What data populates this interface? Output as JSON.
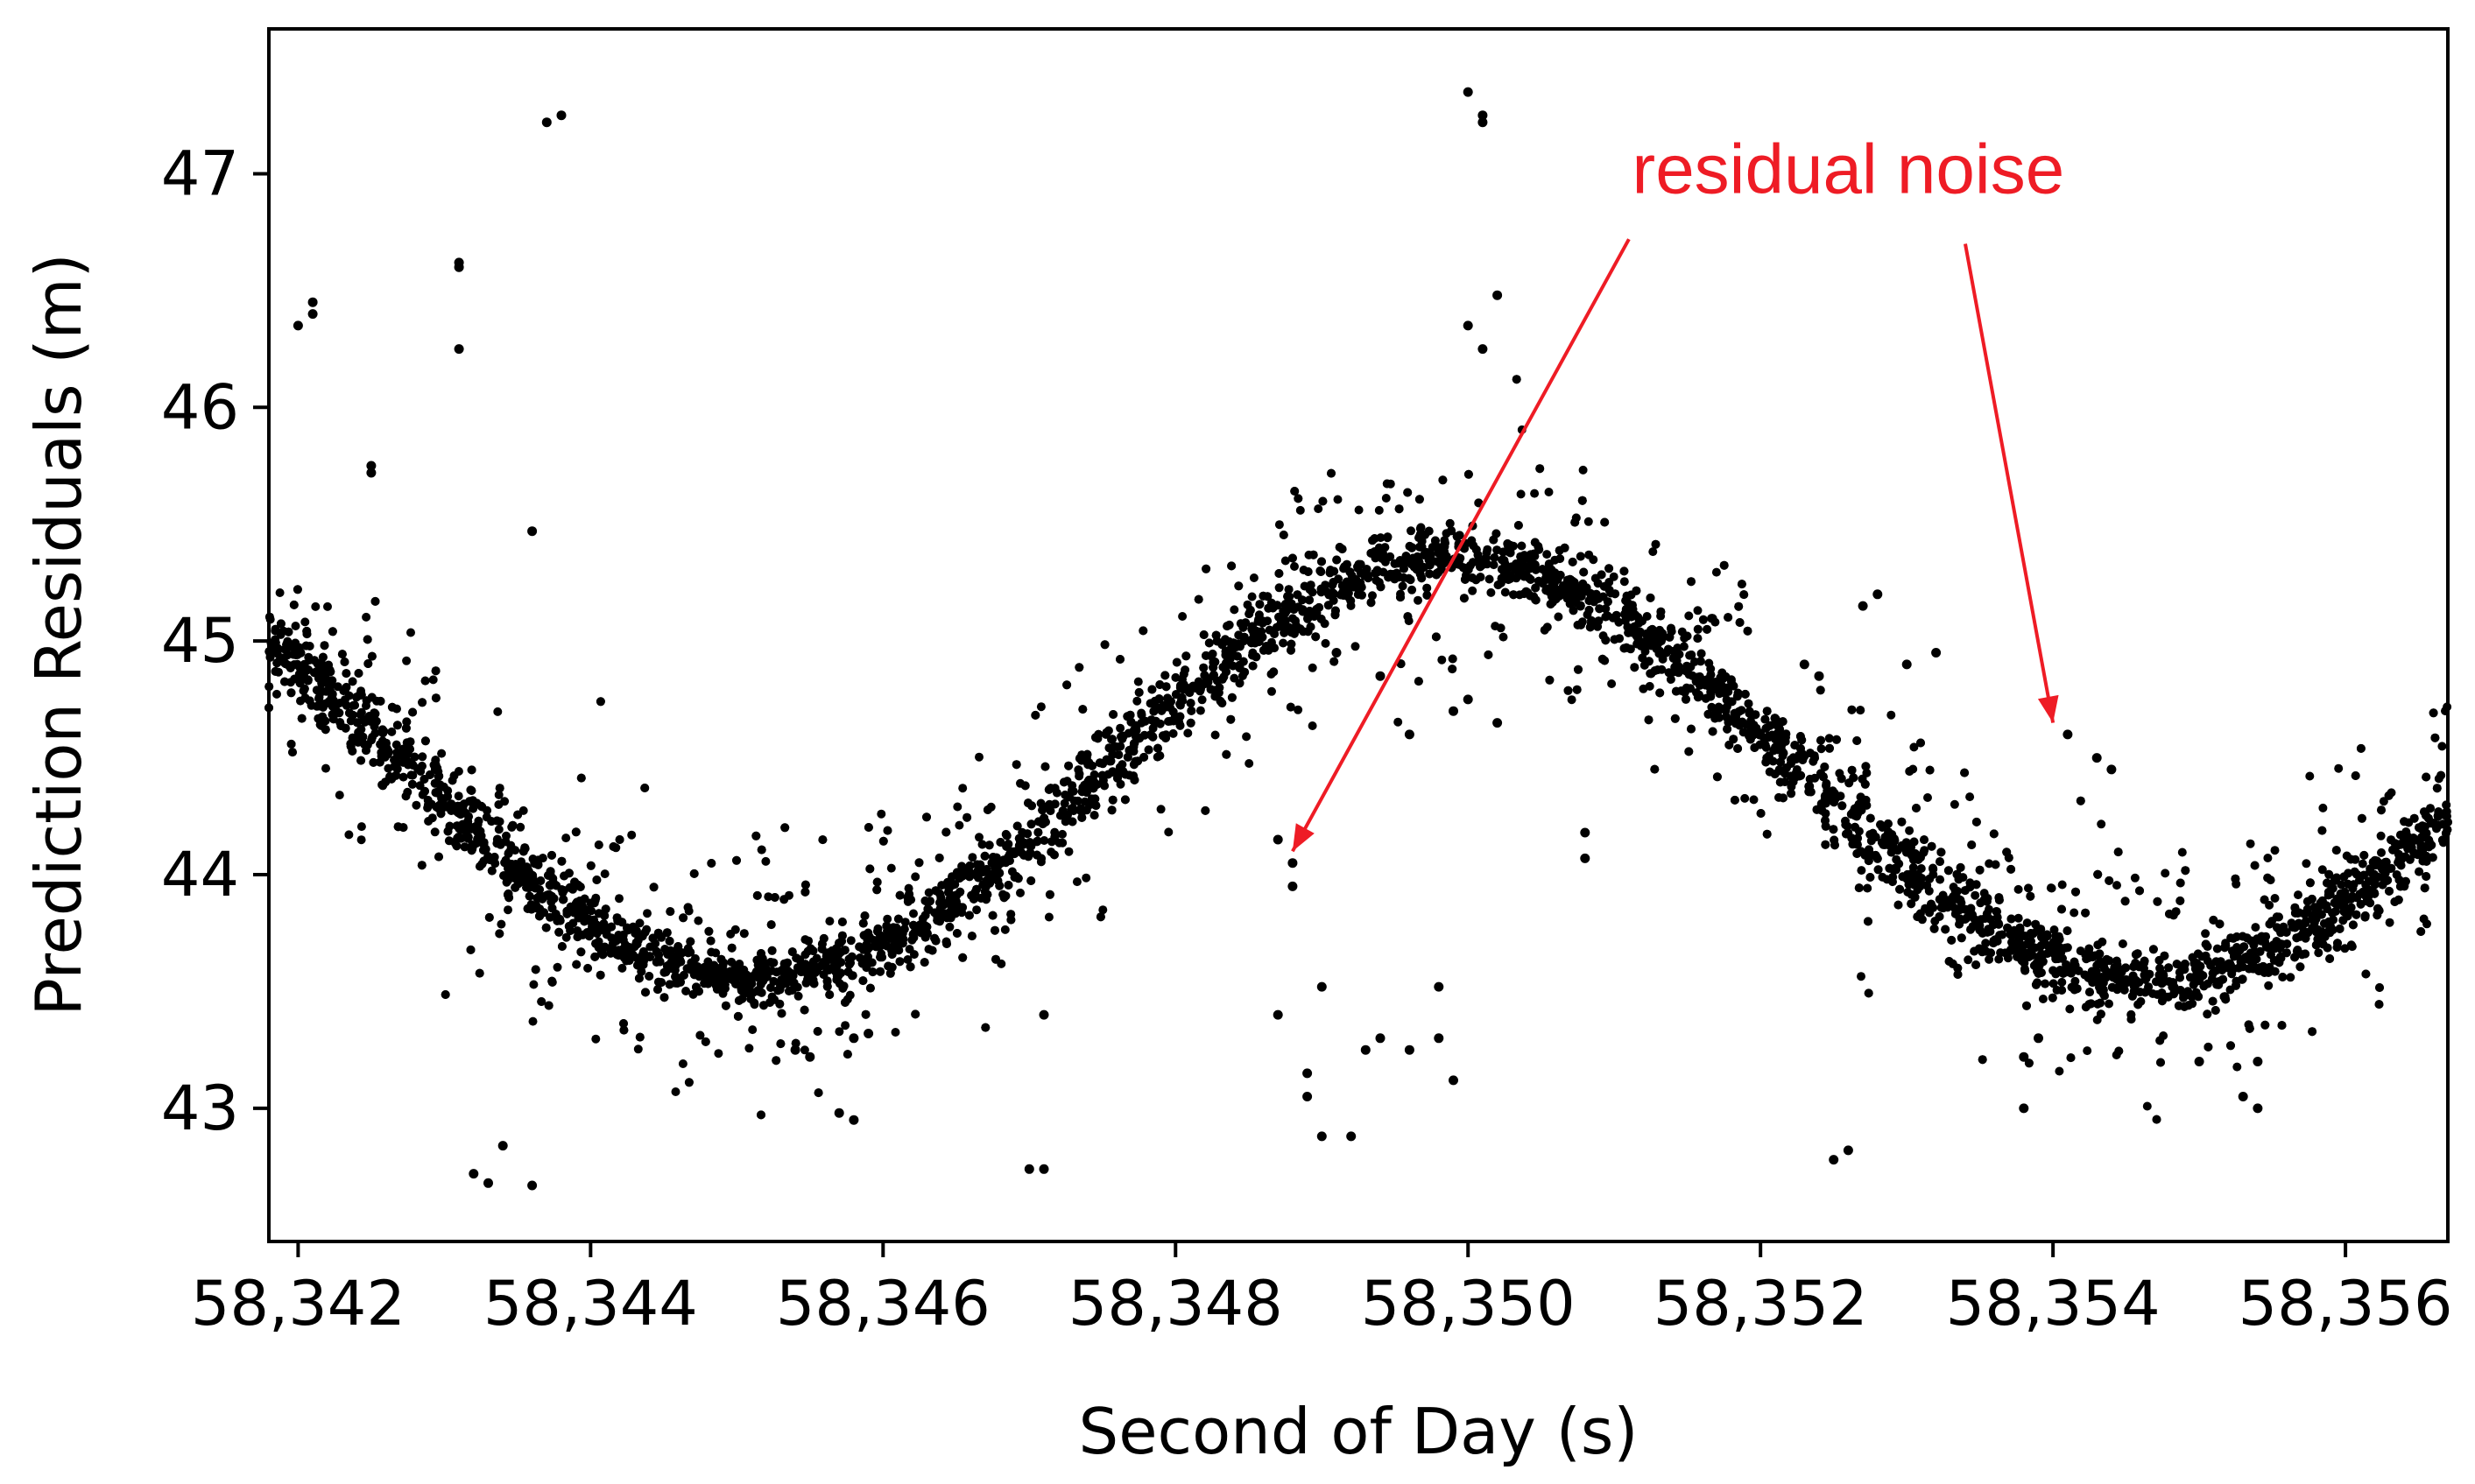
{
  "chart_data": {
    "type": "scatter",
    "title": "",
    "xlabel": "Second of Day (s)",
    "ylabel": "Prediction Residuals (m)",
    "xlim": [
      58341.8,
      58356.7
    ],
    "ylim": [
      42.43,
      47.62
    ],
    "x_ticks": [
      58342,
      58344,
      58346,
      58348,
      58350,
      58352,
      58354,
      58356
    ],
    "x_tick_labels": [
      "58,342",
      "58,344",
      "58,346",
      "58,348",
      "58,350",
      "58,352",
      "58,354",
      "58,356"
    ],
    "y_ticks": [
      43,
      44,
      45,
      46,
      47
    ],
    "y_tick_labels": [
      "43",
      "44",
      "45",
      "46",
      "47"
    ],
    "grid": false,
    "marker_color": "#000000",
    "series": [
      {
        "name": "prediction residuals",
        "trend_model": {
          "mean": 44.45,
          "amplitude": 0.9,
          "period_s": 9.5,
          "peak_at_s": 58349.9,
          "x_start": 58341.8,
          "x_end": 58356.7,
          "approx_point_count": 6000
        },
        "outliers": [
          [
            58342.0,
            46.35
          ],
          [
            58342.1,
            46.45
          ],
          [
            58342.1,
            46.4
          ],
          [
            58342.5,
            45.75
          ],
          [
            58342.5,
            45.72
          ],
          [
            58343.1,
            46.62
          ],
          [
            58343.1,
            46.6
          ],
          [
            58343.1,
            46.25
          ],
          [
            58343.6,
            45.47
          ],
          [
            58343.7,
            47.22
          ],
          [
            58343.8,
            47.25
          ],
          [
            58343.2,
            42.72
          ],
          [
            58343.3,
            42.68
          ],
          [
            58343.4,
            42.84
          ],
          [
            58343.6,
            42.67
          ],
          [
            58345.4,
            43.25
          ],
          [
            58345.5,
            43.22
          ],
          [
            58345.8,
            43.3
          ],
          [
            58345.9,
            43.32
          ],
          [
            58345.7,
            42.98
          ],
          [
            58345.8,
            42.95
          ],
          [
            58347.0,
            42.74
          ],
          [
            58347.1,
            42.74
          ],
          [
            58347.1,
            43.4
          ],
          [
            58348.7,
            44.15
          ],
          [
            58348.8,
            44.05
          ],
          [
            58348.8,
            43.95
          ],
          [
            58348.7,
            43.4
          ],
          [
            58348.9,
            43.15
          ],
          [
            58348.9,
            43.05
          ],
          [
            58349.0,
            43.52
          ],
          [
            58349.0,
            42.88
          ],
          [
            58349.2,
            42.88
          ],
          [
            58349.3,
            43.25
          ],
          [
            58349.4,
            43.3
          ],
          [
            58349.6,
            43.25
          ],
          [
            58349.8,
            43.52
          ],
          [
            58349.8,
            43.3
          ],
          [
            58349.9,
            43.12
          ],
          [
            58350.0,
            47.35
          ],
          [
            58350.1,
            47.25
          ],
          [
            58350.1,
            47.22
          ],
          [
            58350.0,
            46.35
          ],
          [
            58350.1,
            46.25
          ],
          [
            58350.2,
            46.48
          ],
          [
            58349.9,
            44.7
          ],
          [
            58350.0,
            44.75
          ],
          [
            58350.2,
            44.65
          ],
          [
            58349.4,
            44.85
          ],
          [
            58349.6,
            44.6
          ],
          [
            58349.1,
            44.95
          ],
          [
            58350.8,
            44.18
          ],
          [
            58350.8,
            44.07
          ],
          [
            58352.5,
            42.78
          ],
          [
            58352.6,
            42.82
          ],
          [
            58353.8,
            43.22
          ],
          [
            58353.8,
            43.0
          ],
          [
            58353.9,
            43.3
          ],
          [
            58355.0,
            43.2
          ],
          [
            58355.3,
            43.05
          ],
          [
            58355.4,
            43.0
          ],
          [
            58355.4,
            43.2
          ],
          [
            58354.1,
            44.6
          ],
          [
            58354.3,
            44.5
          ],
          [
            58354.4,
            44.45
          ],
          [
            58352.7,
            45.15
          ],
          [
            58352.8,
            45.2
          ],
          [
            58353.0,
            44.9
          ],
          [
            58353.2,
            44.95
          ],
          [
            58352.3,
            44.9
          ],
          [
            58352.4,
            44.85
          ]
        ]
      }
    ],
    "annotations": [
      {
        "text": "residual noise",
        "color": "#ee1c25",
        "text_anchor": [
          58352.6,
          47.0
        ],
        "arrows": [
          {
            "from": [
              58351.1,
              46.72
            ],
            "to": [
              58348.8,
              44.1
            ]
          },
          {
            "from": [
              58353.4,
              46.7
            ],
            "to": [
              58354.0,
              44.65
            ]
          }
        ]
      }
    ]
  }
}
